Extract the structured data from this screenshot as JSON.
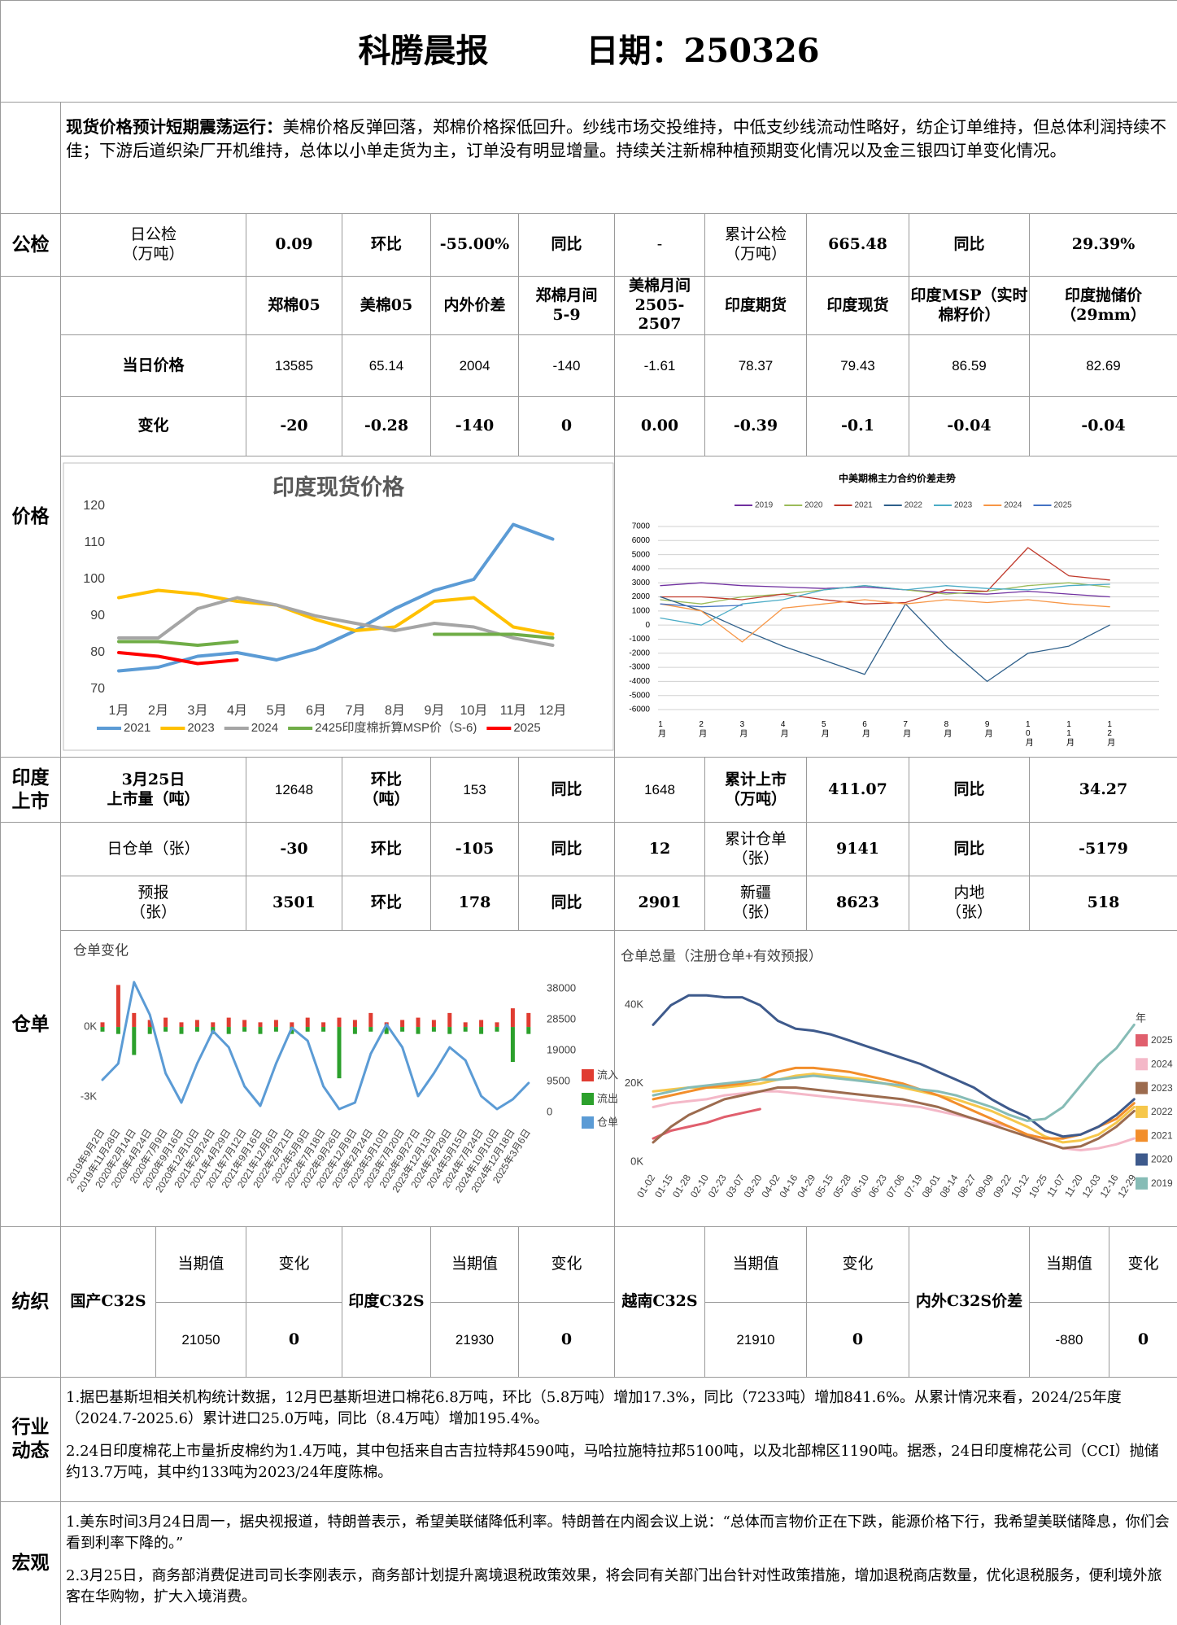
{
  "header": {
    "title": "科腾晨报",
    "date": "日期：250326"
  },
  "summary": {
    "lead": "现货价格预计短期震荡运行：",
    "text": "美棉价格反弹回落，郑棉价格探低回升。纱线市场交投维持，中低支纱线流动性略好，纺企订单维持，但总体利润持续不佳；下游后道织染厂开机维持，总体以小单走货为主，订单没有明显增量。持续关注新棉种植预期变化情况以及金三银四订单变化情况。"
  },
  "sections": {
    "inspection": "公检",
    "price": "价格",
    "listing": "印度上市",
    "warrant": "仓单"
  },
  "inspection": [
    [
      "日公检",
      "（万吨）"
    ],
    "0.09",
    "环比",
    "-55.00%",
    "同比",
    "-",
    [
      "累计公检",
      "（万吨）"
    ],
    "665.48",
    "同比",
    "29.39%"
  ],
  "prices": {
    "header": [
      "郑棉05",
      "美棉05",
      "内外价差",
      [
        "郑棉月间",
        "5-9"
      ],
      [
        "美棉月间",
        "2505-2507"
      ],
      "印度期货",
      "印度现货",
      [
        "印度MSP（实时",
        "棉籽价）"
      ],
      [
        "印度抛储价",
        "（29mm）"
      ]
    ],
    "rows": [
      [
        "当日价格",
        "13585",
        "65.14",
        "2004",
        "-140",
        "-1.61",
        "78.37",
        "79.43",
        "86.59",
        "82.69"
      ],
      [
        "变化",
        "-20",
        "-0.28",
        "-140",
        "0",
        "0.00",
        "-0.39",
        "-0.1",
        "-0.04",
        "-0.04"
      ]
    ]
  },
  "listing": [
    [
      "3月25日",
      "上市量（吨）"
    ],
    "12648",
    [
      "环比",
      "（吨）"
    ],
    "153",
    "同比",
    "1648",
    [
      "累计上市",
      "（万吨）"
    ],
    "411.07",
    "同比",
    "34.27"
  ],
  "warrants": [
    [
      "日仓单（张）",
      "-30",
      "环比",
      "-105",
      "同比",
      "12",
      [
        "累计仓单",
        "（张）"
      ],
      "9141",
      "同比",
      "-5179"
    ],
    [
      [
        "预报",
        "（张）"
      ],
      "3501",
      "环比",
      "178",
      "同比",
      "2901",
      [
        "新疆",
        "（张）"
      ],
      "8623",
      [
        "内地",
        "（张）"
      ],
      "518"
    ]
  ],
  "charts": [
    {
      "type": "line",
      "title": "印度现货价格",
      "categories": [
        "1月",
        "2月",
        "3月",
        "4月",
        "5月",
        "6月",
        "7月",
        "8月",
        "9月",
        "10月",
        "11月",
        "12月"
      ],
      "ylim": [
        70,
        120
      ],
      "yticks": [
        70,
        80,
        90,
        100,
        110,
        120
      ],
      "grid": false,
      "series": [
        {
          "name": "2021",
          "color": "#5b9bd5",
          "values": [
            75,
            76,
            79,
            80,
            78,
            81,
            86,
            92,
            97,
            100,
            115,
            111
          ]
        },
        {
          "name": "2023",
          "color": "#ffc000",
          "values": [
            95,
            97,
            96,
            94,
            93,
            89,
            86,
            87,
            94,
            95,
            87,
            85
          ]
        },
        {
          "name": "2024",
          "color": "#a5a5a5",
          "values": [
            84,
            84,
            92,
            95,
            93,
            90,
            88,
            86,
            88,
            87,
            84,
            82
          ]
        },
        {
          "name": "2425印度棉折算MSP价（S-6)",
          "color": "#70ad47",
          "values": [
            83,
            83,
            82,
            83,
            null,
            null,
            null,
            null,
            85,
            85,
            85,
            84
          ]
        },
        {
          "name": "2025",
          "color": "#ff0000",
          "values": [
            80,
            79,
            77,
            78,
            null,
            null,
            null,
            null,
            null,
            null,
            null,
            null
          ]
        }
      ]
    },
    {
      "type": "line",
      "title": "中美期棉主力合约价差走势",
      "categories": [
        "1月",
        "2月",
        "3月",
        "4月",
        "5月",
        "6月",
        "7月",
        "8月",
        "9月",
        "10月",
        "11月",
        "12月"
      ],
      "ylim": [
        -6000,
        7000
      ],
      "yticks": [
        -6000,
        -5000,
        -4000,
        -3000,
        -2000,
        -1000,
        0,
        1000,
        2000,
        3000,
        4000,
        5000,
        6000,
        7000
      ],
      "grid": true,
      "series": [
        {
          "name": "2019",
          "color": "#7030a0",
          "values": [
            2800,
            3000,
            2800,
            2700,
            2600,
            2700,
            2500,
            2300,
            2200,
            2400,
            2200,
            2000
          ]
        },
        {
          "name": "2020",
          "color": "#9bbb59",
          "values": [
            1800,
            1500,
            2000,
            2200,
            2500,
            2800,
            2500,
            2200,
            2400,
            2800,
            3000,
            2700
          ]
        },
        {
          "name": "2021",
          "color": "#c0392b",
          "values": [
            2000,
            2000,
            1800,
            2200,
            1800,
            1500,
            1600,
            2500,
            2400,
            5500,
            3500,
            3200
          ]
        },
        {
          "name": "2022",
          "color": "#2e5f8a",
          "values": [
            2000,
            1000,
            -300,
            -1500,
            -2500,
            -3500,
            1500,
            -1500,
            -4000,
            -2000,
            -1500,
            0
          ]
        },
        {
          "name": "2023",
          "color": "#4bacc6",
          "values": [
            500,
            0,
            1500,
            1800,
            2500,
            2800,
            2500,
            2800,
            2600,
            2500,
            2800,
            2900
          ]
        },
        {
          "name": "2024",
          "color": "#f79646",
          "values": [
            1500,
            1000,
            -1200,
            1200,
            1500,
            1800,
            1500,
            1800,
            1600,
            1800,
            1500,
            1300
          ]
        },
        {
          "name": "2025",
          "color": "#4472c4",
          "values": [
            1500,
            1300,
            1400,
            null,
            null,
            null,
            null,
            null,
            null,
            null,
            null,
            null
          ]
        }
      ]
    },
    {
      "type": "combo",
      "title": "仓单变化",
      "categories": [
        "2019年9月2日",
        "2019年11月28日",
        "2020年2月14日",
        "2020年4月24日",
        "2020年7月9日",
        "2020年9月16日",
        "2020年12月10日",
        "2021年2月24日",
        "2021年4月29日",
        "2021年7月12日",
        "2021年9月16日",
        "2021年12月6日",
        "2022年2月21日",
        "2022年5月9日",
        "2022年7月18日",
        "2022年9月26日",
        "2022年12月9日",
        "2023年2月24日",
        "2023年5月10日",
        "2023年7月20日",
        "2023年9月27日",
        "2023年12月13日",
        "2024年2月29日",
        "2024年5月15日",
        "2024年7月24日",
        "2024年10月10日",
        "2024年12月18日",
        "2025年3月6日"
      ],
      "ylim": [
        -3800,
        2200
      ],
      "yticks": [
        {
          "value": 0,
          "label": "0K"
        },
        {
          "value": -3000,
          "label": "-3K"
        }
      ],
      "y2lim": [
        -1000,
        42000
      ],
      "y2ticks": [
        0,
        9500,
        19000,
        28500,
        38000
      ],
      "series": [
        {
          "name": "流入",
          "color": "#e03c31",
          "kind": "bar",
          "values": [
            200,
            1800,
            600,
            300,
            400,
            200,
            300,
            200,
            400,
            300,
            200,
            300,
            200,
            400,
            200,
            400,
            300,
            600,
            200,
            300,
            400,
            300,
            600,
            200,
            300,
            200,
            800,
            600
          ]
        },
        {
          "name": "流出",
          "color": "#2ca02c",
          "kind": "bar",
          "values": [
            -200,
            -300,
            -1200,
            -300,
            -200,
            -300,
            -200,
            -300,
            -300,
            -200,
            -300,
            -200,
            -300,
            -200,
            -200,
            -2200,
            -300,
            -200,
            -300,
            -200,
            -300,
            -200,
            -300,
            -200,
            -300,
            -200,
            -1500,
            -300
          ]
        },
        {
          "name": "仓单",
          "color": "#5b9bd5",
          "kind": "line",
          "axis": "y2",
          "values": [
            10000,
            15000,
            40000,
            30000,
            12000,
            3000,
            15000,
            25000,
            20000,
            8000,
            2000,
            15000,
            26000,
            22000,
            8000,
            1000,
            3000,
            18000,
            27000,
            20000,
            5000,
            12000,
            20000,
            16000,
            5000,
            1000,
            4000,
            9000
          ]
        }
      ]
    },
    {
      "type": "line",
      "title": "仓单总量（注册仓单+有效预报）",
      "legend_title": "年",
      "categories": [
        "01-02",
        "01-15",
        "01-28",
        "02-10",
        "02-23",
        "03-07",
        "03-20",
        "04-02",
        "04-16",
        "04-29",
        "05-15",
        "05-28",
        "06-10",
        "06-23",
        "07-06",
        "07-19",
        "08-01",
        "08-14",
        "08-27",
        "09-09",
        "09-22",
        "10-12",
        "10-25",
        "11-07",
        "11-20",
        "12-03",
        "12-16",
        "12-29"
      ],
      "ylim": [
        0,
        44000
      ],
      "yticks": [
        {
          "value": 0,
          "label": "0K"
        },
        {
          "value": 20000,
          "label": "20K"
        },
        {
          "value": 40000,
          "label": "40K"
        }
      ],
      "series": [
        {
          "name": "2025",
          "color": "#e05f6d",
          "values": [
            6000,
            8000,
            9000,
            10000,
            11500,
            12500,
            13500,
            null,
            null,
            null,
            null,
            null,
            null,
            null,
            null,
            null,
            null,
            null,
            null,
            null,
            null,
            null,
            null,
            null,
            null,
            null,
            null,
            null
          ]
        },
        {
          "name": "2024",
          "color": "#f4b8c8",
          "values": [
            14000,
            15000,
            15500,
            16000,
            17000,
            17500,
            18000,
            18000,
            17500,
            17000,
            16500,
            16000,
            15500,
            15000,
            14500,
            14000,
            13000,
            12000,
            11000,
            10000,
            9000,
            7000,
            5000,
            3500,
            3000,
            3500,
            4500,
            6000
          ]
        },
        {
          "name": "2023",
          "color": "#9c6b4e",
          "values": [
            5000,
            9000,
            12000,
            14000,
            16000,
            17000,
            18000,
            19000,
            19000,
            18500,
            18000,
            17500,
            17000,
            16500,
            16000,
            15000,
            14000,
            12500,
            11000,
            9500,
            8000,
            6500,
            5000,
            3500,
            4000,
            6000,
            9000,
            13000
          ]
        },
        {
          "name": "2022",
          "color": "#f6c74b",
          "values": [
            18000,
            18500,
            19000,
            19000,
            19000,
            19500,
            20000,
            21000,
            22000,
            22500,
            22000,
            21500,
            21000,
            20000,
            19000,
            18000,
            17000,
            16000,
            14500,
            13000,
            11000,
            9000,
            6500,
            5000,
            5500,
            7000,
            10000,
            14000
          ]
        },
        {
          "name": "2021",
          "color": "#f28e2b",
          "values": [
            16000,
            17000,
            18000,
            19000,
            19500,
            20000,
            21000,
            23000,
            24000,
            24000,
            23500,
            23000,
            22000,
            21000,
            20000,
            18500,
            17000,
            15000,
            13000,
            11000,
            9000,
            7000,
            6000,
            6000,
            7000,
            9000,
            11000,
            15000
          ]
        },
        {
          "name": "2020",
          "color": "#3e5a8c",
          "values": [
            35000,
            40000,
            42500,
            42500,
            42000,
            42000,
            40000,
            36000,
            34000,
            33500,
            32500,
            31000,
            29500,
            28000,
            26500,
            25000,
            23000,
            21000,
            19000,
            16000,
            13500,
            11500,
            8000,
            6500,
            7000,
            9000,
            12000,
            16000
          ]
        },
        {
          "name": "2019",
          "color": "#86bcb6",
          "values": [
            17000,
            18000,
            19000,
            19500,
            20000,
            20500,
            21000,
            21000,
            21500,
            22000,
            21500,
            21000,
            20500,
            20000,
            19500,
            18500,
            18000,
            17000,
            15500,
            14000,
            12000,
            10500,
            11000,
            14000,
            19500,
            25000,
            29000,
            35000
          ]
        }
      ]
    }
  ],
  "textile": {
    "label": "纺织",
    "items": [
      {
        "name": "国产C32S",
        "current_label": "当期值",
        "change_label": "变化",
        "current": "21050",
        "change": "0"
      },
      {
        "name": "印度C32S",
        "current_label": "当期值",
        "change_label": "变化",
        "current": "21930",
        "change": "0"
      },
      {
        "name": "越南C32S",
        "current_label": "当期值",
        "change_label": "变化",
        "current": "21910",
        "change": "0"
      },
      {
        "name": "内外C32S价差",
        "current_label": "当期值",
        "change_label": "变化",
        "current": "-880",
        "change": "0"
      }
    ]
  },
  "news": {
    "label": "行业动态",
    "items": [
      "1.据巴基斯坦相关机构统计数据，12月巴基斯坦进口棉花6.8万吨，环比（5.8万吨）增加17.3%，同比（7233吨）增加841.6%。从累计情况来看，2024/25年度（2024.7-2025.6）累计进口25.0万吨，同比（8.4万吨）增加195.4%。",
      "2.24日印度棉花上市量折皮棉约为1.4万吨，其中包括来自古吉拉特邦4590吨，马哈拉施特拉邦5100吨，以及北部棉区1190吨。据悉，24日印度棉花公司（CCI）抛储约13.7万吨，其中约133吨为2023/24年度陈棉。"
    ]
  },
  "macro": {
    "label": "宏观",
    "items": [
      "1.美东时间3月24日周一，据央视报道，特朗普表示，希望美联储降低利率。特朗普在内阁会议上说：“总体而言物价正在下跌，能源价格下行，我希望美联储降息，你们会看到利率下降的。”",
      "2.3月25日，商务部消费促进司司长李刚表示，商务部计划提升离境退税政策效果，将会同有关部门出台针对性政策措施，增加退税商店数量，优化退税服务，便利境外旅客在华购物，扩大入境消费。"
    ]
  }
}
